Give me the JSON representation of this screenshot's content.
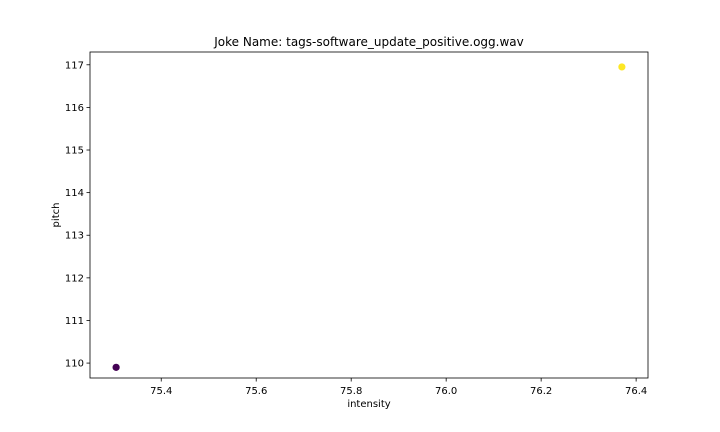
{
  "chart_data": {
    "type": "scatter",
    "title": "Joke Name: tags-software_update_positive.ogg.wav",
    "xlabel": "intensity",
    "ylabel": "pitch",
    "xlim": [
      75.25,
      76.425
    ],
    "ylim": [
      109.65,
      117.3
    ],
    "grid": false,
    "x_ticks": [
      "75.4",
      "75.6",
      "75.8",
      "76.0",
      "76.2",
      "76.4"
    ],
    "y_ticks": [
      "110",
      "111",
      "112",
      "113",
      "114",
      "115",
      "116",
      "117"
    ],
    "points": [
      {
        "x": 75.305,
        "y": 109.9,
        "color": "#440154"
      },
      {
        "x": 76.37,
        "y": 116.95,
        "color": "#fde725"
      }
    ]
  }
}
